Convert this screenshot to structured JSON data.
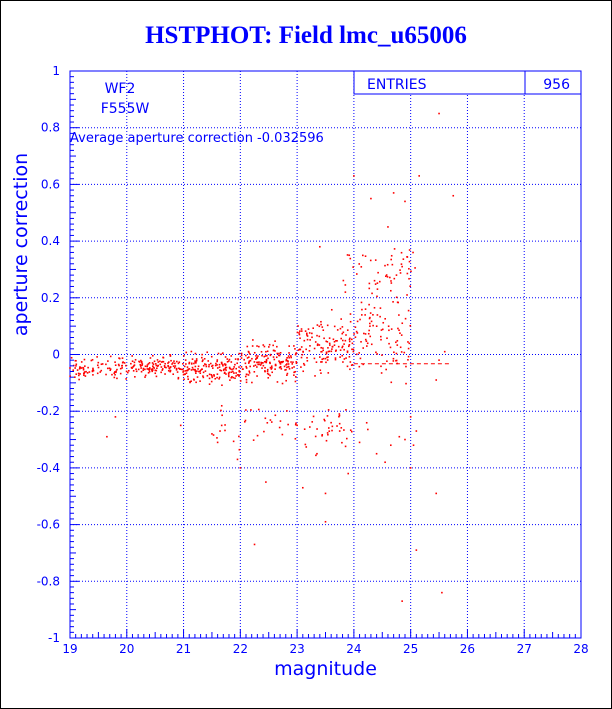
{
  "colors": {
    "title": "#0000ff",
    "axes": "#0000ff",
    "grid": "#0000ff",
    "points": "#ff0000",
    "average_line": "#ff0000",
    "background": "#ffffff"
  },
  "chart_data": {
    "type": "scatter",
    "title": "HSTPHOT: Field lmc_u65006",
    "xlabel": "magnitude",
    "ylabel": "aperture correction",
    "xlim": [
      19,
      28
    ],
    "ylim": [
      -1,
      1
    ],
    "x_ticks": [
      "19",
      "20",
      "21",
      "22",
      "23",
      "24",
      "25",
      "26",
      "27",
      "28"
    ],
    "y_ticks": [
      "-1",
      "-0.8",
      "-0.6",
      "-0.4",
      "-0.2",
      "0",
      "0.2",
      "0.4",
      "0.6",
      "0.8",
      "1"
    ],
    "grid": true,
    "annotations": {
      "chip": "WF2",
      "filter": "F555W",
      "average_text": "Average aperture correction -0.032596"
    },
    "stats": {
      "entries_label": "ENTRIES",
      "entries_value": "956"
    },
    "average_line": {
      "y": -0.032596,
      "x_range": [
        24,
        25.7
      ]
    },
    "outliers": [
      {
        "x": 25.5,
        "y": 0.85
      },
      {
        "x": 24.0,
        "y": 0.63
      },
      {
        "x": 25.15,
        "y": 0.63
      },
      {
        "x": 25.75,
        "y": 0.56
      },
      {
        "x": 24.7,
        "y": 0.57
      },
      {
        "x": 24.3,
        "y": 0.55
      },
      {
        "x": 24.9,
        "y": 0.54
      },
      {
        "x": 24.6,
        "y": 0.45
      },
      {
        "x": 24.85,
        "y": 0.31
      },
      {
        "x": 24.75,
        "y": 0.28
      },
      {
        "x": 23.85,
        "y": 0.22
      },
      {
        "x": 23.4,
        "y": 0.38
      },
      {
        "x": 25.6,
        "y": 0.01
      },
      {
        "x": 25.5,
        "y": -0.02
      },
      {
        "x": 25.45,
        "y": -0.09
      },
      {
        "x": 25.0,
        "y": -0.22
      },
      {
        "x": 25.1,
        "y": -0.27
      },
      {
        "x": 24.9,
        "y": -0.3
      },
      {
        "x": 24.8,
        "y": -0.29
      },
      {
        "x": 25.05,
        "y": -0.32
      },
      {
        "x": 24.65,
        "y": -0.32
      },
      {
        "x": 24.4,
        "y": -0.35
      },
      {
        "x": 24.55,
        "y": -0.38
      },
      {
        "x": 25.0,
        "y": -0.4
      },
      {
        "x": 22.45,
        "y": -0.45
      },
      {
        "x": 23.1,
        "y": -0.47
      },
      {
        "x": 23.5,
        "y": -0.49
      },
      {
        "x": 25.45,
        "y": -0.49
      },
      {
        "x": 23.5,
        "y": -0.59
      },
      {
        "x": 22.25,
        "y": -0.67
      },
      {
        "x": 25.1,
        "y": -0.69
      },
      {
        "x": 24.85,
        "y": -0.87
      },
      {
        "x": 25.55,
        "y": -0.84
      },
      {
        "x": 22.0,
        "y": -0.4
      },
      {
        "x": 21.95,
        "y": -0.37
      },
      {
        "x": 21.6,
        "y": -0.31
      },
      {
        "x": 21.5,
        "y": -0.28
      },
      {
        "x": 19.65,
        "y": -0.29
      },
      {
        "x": 19.8,
        "y": -0.22
      },
      {
        "x": 20.95,
        "y": -0.25
      },
      {
        "x": 23.35,
        "y": -0.35
      },
      {
        "x": 23.9,
        "y": -0.42
      },
      {
        "x": 23.75,
        "y": -0.27
      },
      {
        "x": 24.1,
        "y": -0.31
      }
    ],
    "clusters": [
      {
        "x_range": [
          19.0,
          21.0
        ],
        "y_center": -0.045,
        "y_spread": 0.05,
        "count": 210
      },
      {
        "x_range": [
          21.0,
          22.0
        ],
        "y_center": -0.05,
        "y_spread": 0.07,
        "count": 170
      },
      {
        "x_range": [
          22.0,
          23.0
        ],
        "y_center": -0.03,
        "y_spread": 0.1,
        "count": 170
      },
      {
        "x_range": [
          23.0,
          24.0
        ],
        "y_center": 0.03,
        "y_spread": 0.14,
        "count": 140
      },
      {
        "x_range": [
          24.0,
          25.0
        ],
        "y_center": 0.08,
        "y_spread": 0.22,
        "count": 100
      },
      {
        "x_range": [
          21.5,
          24.0
        ],
        "y_center": -0.25,
        "y_spread": 0.1,
        "count": 60
      },
      {
        "x_range": [
          23.8,
          25.1
        ],
        "y_center": 0.3,
        "y_spread": 0.15,
        "count": 50
      },
      {
        "x_range": [
          23.0,
          24.5
        ],
        "y_center": -0.3,
        "y_spread": 0.12,
        "count": 12
      }
    ]
  }
}
